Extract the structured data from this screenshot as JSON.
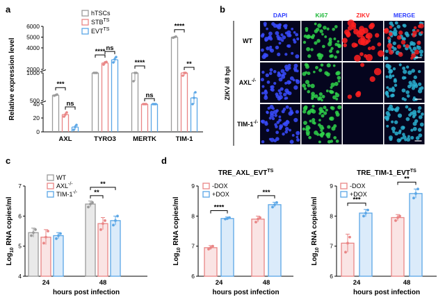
{
  "colors": {
    "gray": "#9a9a9a",
    "red": "#e98585",
    "blue": "#5aa6e6",
    "dapi_bg": "#0a0a4a",
    "dapi_dot": "#3a4cff",
    "ki67_dot": "#2fd14a",
    "zikv_dot": "#ff2020",
    "merge_dot": "#2ab0d0"
  },
  "panels": {
    "a": "a",
    "b": "b",
    "c": "c",
    "d": "d"
  },
  "chart_data": [
    {
      "id": "a",
      "type": "bar",
      "ylabel": "Relative expression level",
      "categories": [
        "AXL",
        "TYRO3",
        "MERTK",
        "TIM-1"
      ],
      "yticks": [
        "0",
        "20",
        "40",
        "500",
        "1000",
        "2000",
        "4000",
        "5000",
        "6000"
      ],
      "segments": [
        [
          0,
          40
        ],
        [
          500,
          1000
        ],
        [
          2000,
          6000
        ]
      ],
      "series": [
        {
          "name": "hTSCs",
          "sup": "",
          "values": [
            600,
            1700,
            1000,
            5000
          ],
          "points": [
            [
              590,
              600,
              610
            ],
            [
              1650,
              1700,
              1720
            ],
            [
              850,
              1000,
              1050
            ],
            [
              4950,
              5000,
              5050
            ]
          ]
        },
        {
          "name": "STB",
          "sup": "TS",
          "values": [
            25,
            2600,
            220,
            1000
          ],
          "points": [
            [
              22,
              25,
              28
            ],
            [
              2450,
              2650,
              2700
            ],
            [
              190,
              220,
              240
            ],
            [
              950,
              1000,
              1020
            ]
          ]
        },
        {
          "name": "EVT",
          "sup": "TS",
          "values": [
            7,
            2900,
            220,
            550
          ],
          "points": [
            [
              3,
              7,
              10
            ],
            [
              2650,
              2950,
              3150
            ],
            [
              170,
              220,
              250
            ],
            [
              450,
              550,
              650
            ]
          ]
        }
      ],
      "significance": [
        {
          "label": "***",
          "category": 0,
          "pair": [
            0,
            1
          ]
        },
        {
          "label": "ns",
          "category": 0,
          "pair": [
            1,
            2
          ]
        },
        {
          "label": "****",
          "category": 1,
          "pair": [
            0,
            1
          ]
        },
        {
          "label": "ns",
          "category": 1,
          "pair": [
            1,
            2
          ]
        },
        {
          "label": "****",
          "category": 2,
          "pair": [
            0,
            1
          ]
        },
        {
          "label": "ns",
          "category": 2,
          "pair": [
            1,
            2
          ]
        },
        {
          "label": "****",
          "category": 3,
          "pair": [
            0,
            1
          ]
        },
        {
          "label": "**",
          "category": 3,
          "pair": [
            1,
            2
          ]
        }
      ]
    },
    {
      "id": "c",
      "type": "bar",
      "xlabel": "hours post infection",
      "ylabel": "Log10 RNA copies/ml",
      "ylabel_main": "Log",
      "ylabel_sub": "10",
      "ylabel_rest": " RNA copies/ml",
      "categories": [
        "24",
        "48"
      ],
      "ylim": [
        4,
        7
      ],
      "yticks": [
        "4",
        "5",
        "6",
        "7"
      ],
      "series": [
        {
          "name": "WT",
          "sup": "",
          "values": [
            5.45,
            6.4
          ],
          "sd": [
            0.15,
            0.1
          ],
          "points": [
            [
              5.35,
              5.45,
              5.55
            ],
            [
              6.3,
              6.4,
              6.45
            ]
          ]
        },
        {
          "name": "AXL",
          "sup": "-/-",
          "values": [
            5.3,
            5.75
          ],
          "sd": [
            0.25,
            0.2
          ],
          "points": [
            [
              5.1,
              5.3,
              5.5
            ],
            [
              5.55,
              5.75,
              5.85
            ]
          ]
        },
        {
          "name": "TIM-1",
          "sup": "-/-",
          "values": [
            5.35,
            5.85
          ],
          "sd": [
            0.1,
            0.15
          ],
          "points": [
            [
              5.25,
              5.35,
              5.42
            ],
            [
              5.7,
              5.85,
              6.0
            ]
          ]
        }
      ],
      "significance": [
        {
          "label": "**",
          "category": 1,
          "pair": [
            0,
            1
          ]
        },
        {
          "label": "**",
          "category": 1,
          "pair": [
            0,
            2
          ]
        }
      ]
    },
    {
      "id": "d1",
      "type": "bar",
      "title_main": "TRE_AXL_EVT",
      "title_sup": "TS",
      "xlabel": "hours post infection",
      "ylabel_main": "Log",
      "ylabel_sub": "10",
      "ylabel_rest": " RNA copies/ml",
      "categories": [
        "24",
        "48"
      ],
      "ylim": [
        6,
        9
      ],
      "yticks": [
        "6",
        "7",
        "8",
        "9"
      ],
      "series": [
        {
          "name": "-DOX",
          "values": [
            6.95,
            7.9
          ],
          "sd": [
            0.07,
            0.1
          ],
          "points": [
            [
              6.9,
              6.95,
              7.0
            ],
            [
              7.8,
              7.9,
              7.95
            ]
          ]
        },
        {
          "name": "+DOX",
          "values": [
            7.92,
            8.38
          ],
          "sd": [
            0.05,
            0.08
          ],
          "points": [
            [
              7.9,
              7.92,
              7.95
            ],
            [
              8.3,
              8.38,
              8.45
            ]
          ]
        }
      ],
      "significance": [
        {
          "label": "****",
          "category": 0
        },
        {
          "label": "***",
          "category": 1
        }
      ]
    },
    {
      "id": "d2",
      "type": "bar",
      "title_main": "TRE_TIM-1_EVT",
      "title_sup": "TS",
      "xlabel": "hours post infection",
      "ylabel_main": "Log",
      "ylabel_sub": "10",
      "ylabel_rest": " RNA copies/ml",
      "categories": [
        "24",
        "48"
      ],
      "ylim": [
        6,
        9
      ],
      "yticks": [
        "6",
        "7",
        "8",
        "9"
      ],
      "series": [
        {
          "name": "-DOX",
          "values": [
            7.1,
            7.95
          ],
          "sd": [
            0.3,
            0.1
          ],
          "points": [
            [
              6.8,
              7.1,
              7.3
            ],
            [
              7.85,
              7.95,
              8.0
            ]
          ]
        },
        {
          "name": "+DOX",
          "values": [
            8.1,
            8.75
          ],
          "sd": [
            0.12,
            0.15
          ],
          "points": [
            [
              8.0,
              8.1,
              8.2
            ],
            [
              8.6,
              8.75,
              8.9
            ]
          ]
        }
      ],
      "significance": [
        {
          "label": "***",
          "category": 0
        },
        {
          "label": "**",
          "category": 1
        }
      ]
    }
  ],
  "micrograph": {
    "side_label": "ZIKV 48 hpi",
    "columns": [
      {
        "label": "DAPI",
        "color": "#2c3cff"
      },
      {
        "label": "Ki67",
        "color": "#1fb83a"
      },
      {
        "label": "ZIKV",
        "color": "#ff2a2a"
      },
      {
        "label": "MERGE",
        "color": "#2c3cff"
      }
    ],
    "rows": [
      {
        "label_main": "WT",
        "label_sup": ""
      },
      {
        "label_main": "AXL",
        "label_sup": "-/-"
      },
      {
        "label_main": "TIM-1",
        "label_sup": "-/-"
      }
    ]
  }
}
